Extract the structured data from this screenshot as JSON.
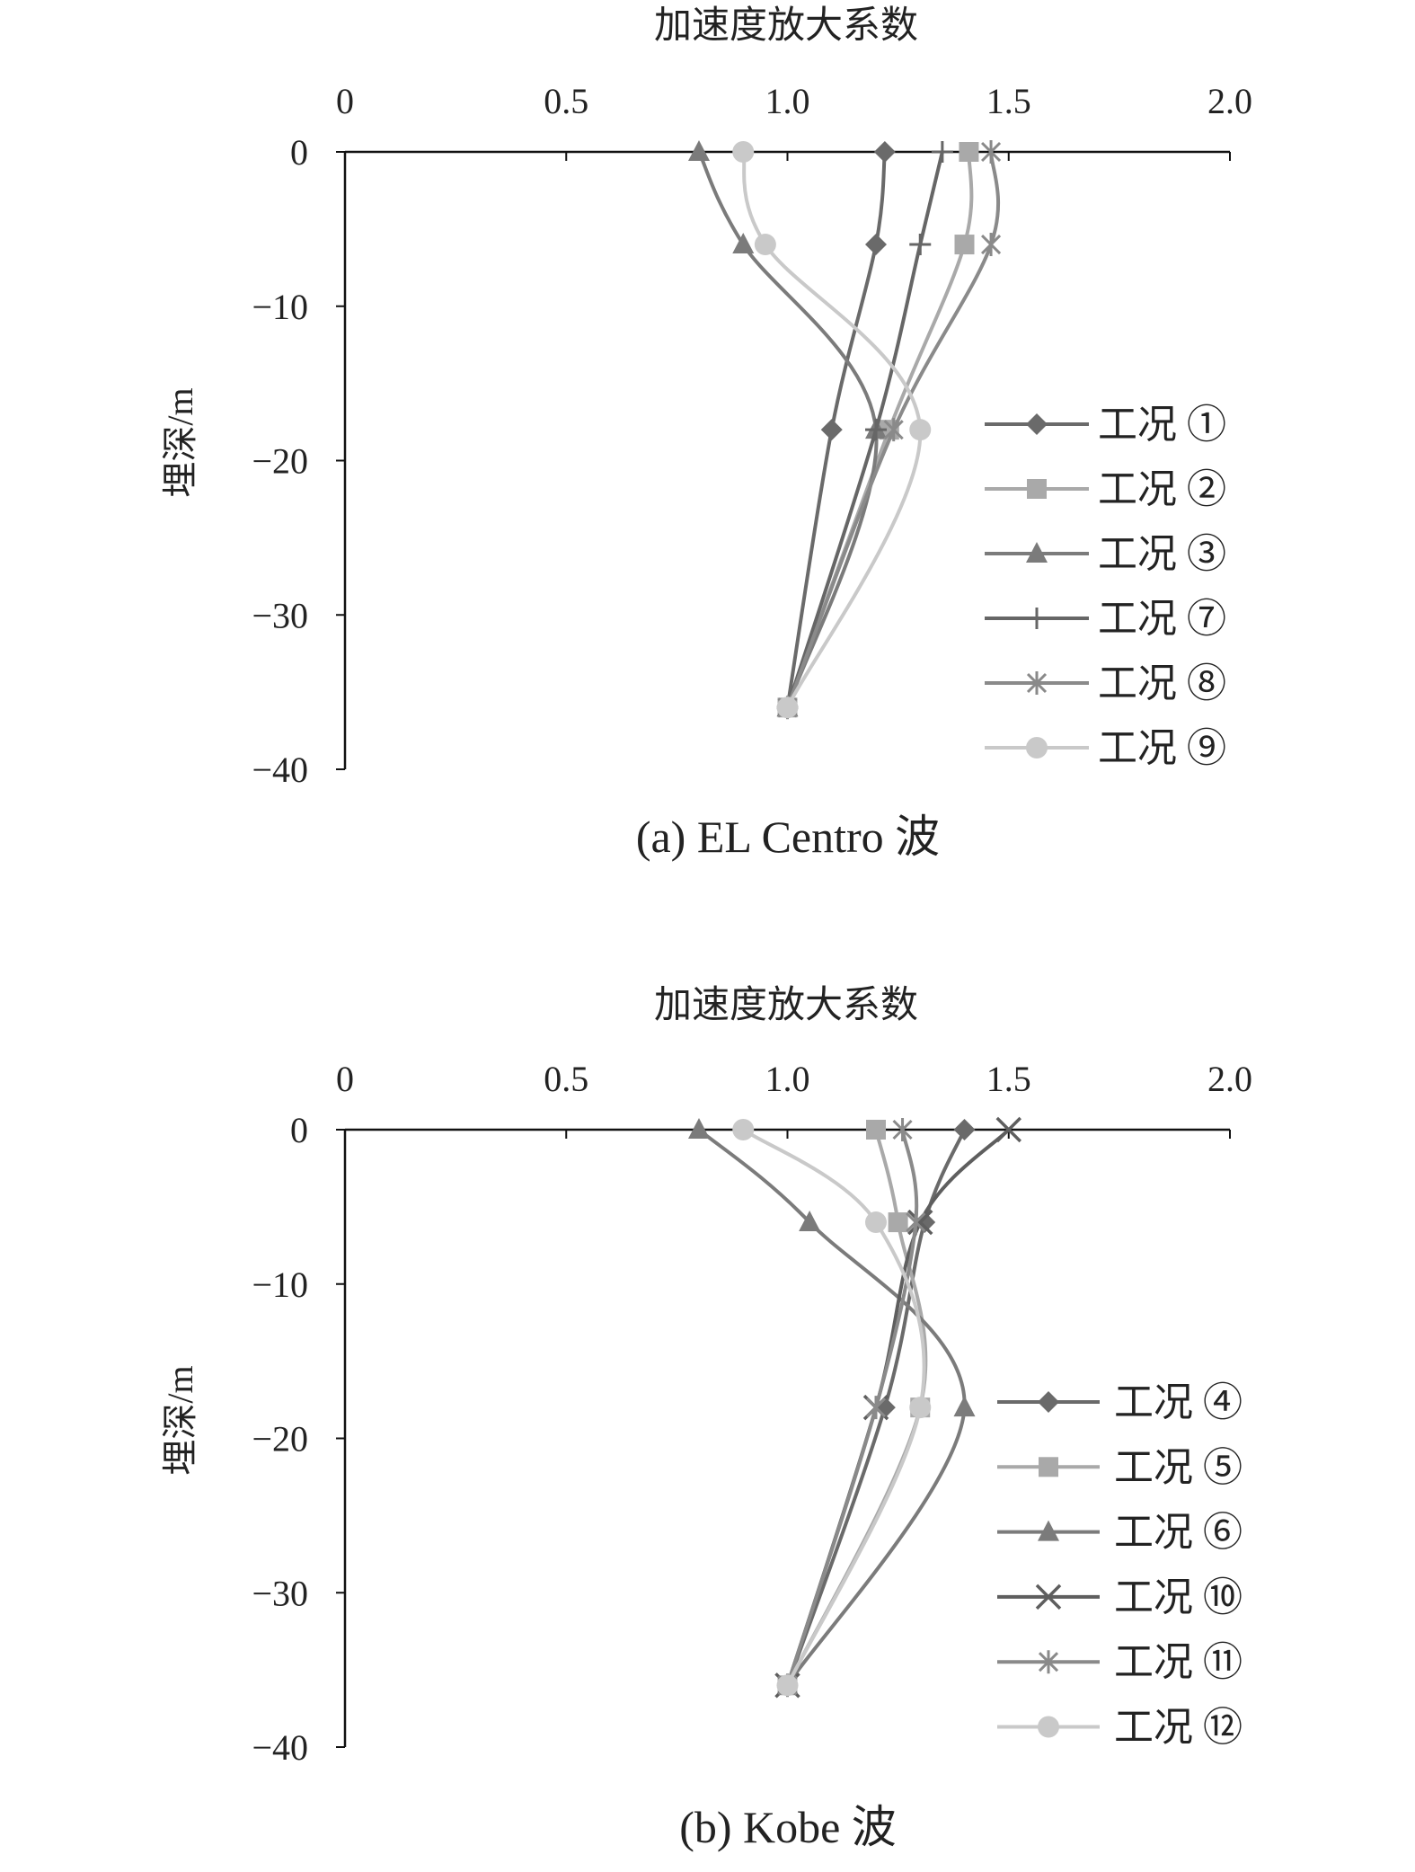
{
  "chart_data": [
    {
      "type": "line",
      "title": "加速度放大系数",
      "caption": "(a) EL Centro 波",
      "xlabel": "加速度放大系数",
      "ylabel": "埋深/m",
      "xlim": [
        0,
        2.0
      ],
      "ylim": [
        -40,
        0
      ],
      "xticks": [
        "0",
        "0.5",
        "1.0",
        "1.5",
        "2.0"
      ],
      "yticks": [
        "0",
        "−10",
        "−20",
        "−30",
        "−40"
      ],
      "legend_position": "right",
      "depths": [
        0,
        -6,
        -18,
        -36
      ],
      "series": [
        {
          "name": "工况 ①",
          "marker": "diamond",
          "color": "#6a6a6a",
          "values": [
            1.22,
            1.2,
            1.1,
            1.0
          ]
        },
        {
          "name": "工况 ②",
          "marker": "square",
          "color": "#a9a9a9",
          "values": [
            1.41,
            1.4,
            1.23,
            1.0
          ]
        },
        {
          "name": "工况 ③",
          "marker": "triangle",
          "color": "#7b7b7b",
          "values": [
            0.8,
            0.9,
            1.2,
            1.0
          ]
        },
        {
          "name": "工况 ⑦",
          "marker": "plus",
          "color": "#666666",
          "values": [
            1.35,
            1.3,
            1.2,
            1.0
          ]
        },
        {
          "name": "工况 ⑧",
          "marker": "asterisk",
          "color": "#8a8a8a",
          "values": [
            1.46,
            1.46,
            1.24,
            1.0
          ]
        },
        {
          "name": "工况 ⑨",
          "marker": "circle",
          "color": "#c9c9c9",
          "values": [
            0.9,
            0.95,
            1.3,
            1.0
          ]
        }
      ]
    },
    {
      "type": "line",
      "title": "加速度放大系数",
      "caption": "(b) Kobe 波",
      "xlabel": "加速度放大系数",
      "ylabel": "埋深/m",
      "xlim": [
        0,
        2.0
      ],
      "ylim": [
        -40,
        0
      ],
      "xticks": [
        "0",
        "0.5",
        "1.0",
        "1.5",
        "2.0"
      ],
      "yticks": [
        "0",
        "−10",
        "−20",
        "−30",
        "−40"
      ],
      "legend_position": "right",
      "depths": [
        0,
        -6,
        -18,
        -36
      ],
      "series": [
        {
          "name": "工况 ④",
          "marker": "diamond",
          "color": "#6a6a6a",
          "values": [
            1.4,
            1.31,
            1.22,
            1.0
          ]
        },
        {
          "name": "工况 ⑤",
          "marker": "square",
          "color": "#a9a9a9",
          "values": [
            1.2,
            1.25,
            1.3,
            1.0
          ]
        },
        {
          "name": "工况 ⑥",
          "marker": "triangle",
          "color": "#7b7b7b",
          "values": [
            0.8,
            1.05,
            1.4,
            1.0
          ]
        },
        {
          "name": "工况 ⑩",
          "marker": "x",
          "color": "#5e5e5e",
          "values": [
            1.5,
            1.3,
            1.2,
            1.0
          ]
        },
        {
          "name": "工况 ⑪",
          "marker": "asterisk",
          "color": "#8a8a8a",
          "values": [
            1.26,
            1.29,
            1.2,
            1.0
          ]
        },
        {
          "name": "工况 ⑫",
          "marker": "circle",
          "color": "#c9c9c9",
          "values": [
            0.9,
            1.2,
            1.3,
            1.0
          ]
        }
      ]
    }
  ]
}
